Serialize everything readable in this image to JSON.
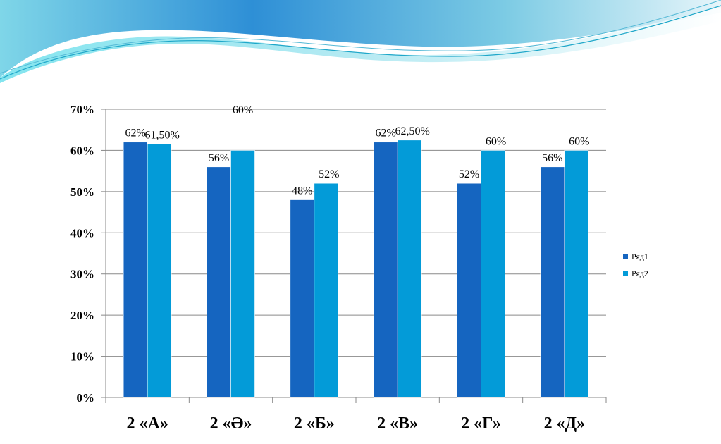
{
  "chart_data": {
    "type": "bar",
    "categories": [
      "2 «А»",
      "2 «Ә»",
      "2 «Б»",
      "2 «В»",
      "2 «Г»",
      "2 «Д»"
    ],
    "series": [
      {
        "name": "Ряд1",
        "values": [
          62,
          56,
          48,
          62,
          52,
          56
        ],
        "labels": [
          "62%",
          "56%",
          "48%",
          "62%",
          "52%",
          "56%"
        ],
        "color": "#1565c0"
      },
      {
        "name": "Ряд2",
        "values": [
          61.5,
          60,
          52,
          62.5,
          60,
          60
        ],
        "labels": [
          "61,50%",
          "60%",
          "52%",
          "62,50%",
          "60%",
          "60%"
        ],
        "color": "#039bd8"
      }
    ],
    "title": "",
    "xlabel": "",
    "ylabel": "",
    "ylim": [
      0,
      70
    ],
    "yticks": [
      "0%",
      "10%",
      "20%",
      "30%",
      "40%",
      "50%",
      "60%",
      "70%"
    ],
    "grid": true,
    "legend": "right"
  }
}
